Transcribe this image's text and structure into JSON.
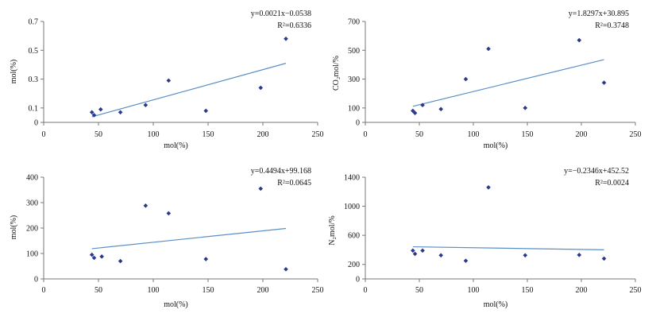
{
  "chart_data": [
    {
      "type": "scatter",
      "xlabel": "mol(%)",
      "ylabel": "mol(%)",
      "xlim": [
        0,
        250
      ],
      "ylim": [
        0,
        0.7
      ],
      "xticks": [
        "0",
        "50",
        "100",
        "150",
        "200",
        "250"
      ],
      "yticks": [
        "0",
        "0.1",
        "0.3",
        "0.5",
        "0.7"
      ],
      "ytick_values": [
        0,
        0.1,
        0.3,
        0.5,
        0.7
      ],
      "equation": "y=0.0021x−0.0538",
      "r2": "R²=0.6336",
      "points": [
        {
          "x": 44,
          "y": 0.07
        },
        {
          "x": 46,
          "y": 0.05
        },
        {
          "x": 52,
          "y": 0.09
        },
        {
          "x": 70,
          "y": 0.07
        },
        {
          "x": 93,
          "y": 0.12
        },
        {
          "x": 114,
          "y": 0.29
        },
        {
          "x": 148,
          "y": 0.08
        },
        {
          "x": 198,
          "y": 0.24
        },
        {
          "x": 221,
          "y": 0.58
        }
      ],
      "trend": {
        "x": [
          44,
          221
        ],
        "y": [
          0.0386,
          0.41
        ]
      },
      "grid": false,
      "marker_color": "#2b3a8c",
      "line_color": "#5b8fc7"
    },
    {
      "type": "scatter",
      "xlabel": "mol(%)",
      "ylabel": "CO₂mol/%",
      "xlim": [
        0,
        250
      ],
      "ylim": [
        0,
        700
      ],
      "xticks": [
        "0",
        "50",
        "100",
        "150",
        "200",
        "250"
      ],
      "yticks": [
        "0",
        "100",
        "300",
        "500",
        "700"
      ],
      "ytick_values": [
        0,
        100,
        300,
        500,
        700
      ],
      "equation": "y=1.8297x+30.895",
      "r2": "R²=0.3748",
      "points": [
        {
          "x": 44,
          "y": 80
        },
        {
          "x": 46,
          "y": 65
        },
        {
          "x": 53,
          "y": 120
        },
        {
          "x": 70,
          "y": 92
        },
        {
          "x": 93,
          "y": 300
        },
        {
          "x": 114,
          "y": 510
        },
        {
          "x": 148,
          "y": 100
        },
        {
          "x": 198,
          "y": 570
        },
        {
          "x": 221,
          "y": 275
        }
      ],
      "trend": {
        "x": [
          44,
          221
        ],
        "y": [
          111.4,
          435.3
        ]
      },
      "grid": false,
      "marker_color": "#2b3a8c",
      "line_color": "#5b8fc7"
    },
    {
      "type": "scatter",
      "xlabel": "mol(%)",
      "ylabel": "mol(%)",
      "xlim": [
        0,
        250
      ],
      "ylim": [
        0,
        400
      ],
      "xticks": [
        "0",
        "50",
        "100",
        "150",
        "200",
        "250"
      ],
      "yticks": [
        "0",
        "100",
        "200",
        "300",
        "400"
      ],
      "ytick_values": [
        0,
        100,
        200,
        300,
        400
      ],
      "equation": "y=0.4494x+99.168",
      "r2": "R²=0.0645",
      "points": [
        {
          "x": 44,
          "y": 95
        },
        {
          "x": 46,
          "y": 83
        },
        {
          "x": 53,
          "y": 88
        },
        {
          "x": 70,
          "y": 70
        },
        {
          "x": 93,
          "y": 288
        },
        {
          "x": 114,
          "y": 258
        },
        {
          "x": 148,
          "y": 78
        },
        {
          "x": 198,
          "y": 355
        },
        {
          "x": 221,
          "y": 38
        }
      ],
      "trend": {
        "x": [
          44,
          221
        ],
        "y": [
          118.9,
          198.5
        ]
      },
      "grid": false,
      "marker_color": "#2b3a8c",
      "line_color": "#5b8fc7"
    },
    {
      "type": "scatter",
      "xlabel": "mol(%)",
      "ylabel": "N₂mol/%",
      "xlim": [
        0,
        250
      ],
      "ylim": [
        0,
        1400
      ],
      "xticks": [
        "0",
        "50",
        "100",
        "150",
        "200",
        "250"
      ],
      "yticks": [
        "0",
        "200",
        "600",
        "1000",
        "1400"
      ],
      "ytick_values": [
        0,
        200,
        600,
        1000,
        1400
      ],
      "equation": "y=−0.2346x+452.52",
      "r2": "R²=0.0024",
      "points": [
        {
          "x": 44,
          "y": 390
        },
        {
          "x": 46,
          "y": 345
        },
        {
          "x": 53,
          "y": 390
        },
        {
          "x": 70,
          "y": 325
        },
        {
          "x": 93,
          "y": 250
        },
        {
          "x": 114,
          "y": 1260
        },
        {
          "x": 148,
          "y": 325
        },
        {
          "x": 198,
          "y": 330
        },
        {
          "x": 221,
          "y": 280
        }
      ],
      "trend": {
        "x": [
          44,
          221
        ],
        "y": [
          442.2,
          400.7
        ]
      },
      "grid": false,
      "marker_color": "#2b3a8c",
      "line_color": "#5b8fc7"
    }
  ]
}
